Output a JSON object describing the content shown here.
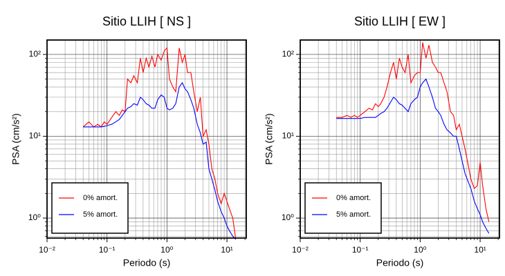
{
  "chart_data": [
    {
      "type": "line",
      "title": "Sitio LLIH [ NS ]",
      "x_label": "Periodo (s)",
      "y_label": "PSA (cm/s²)",
      "x_scale": "log",
      "y_scale": "log",
      "grid": true,
      "legend_position": "lower left",
      "xlim": [
        0.01,
        21
      ],
      "ylim": [
        0.57,
        150
      ],
      "xticks": [
        {
          "value": 0.01,
          "label": "10⁻²"
        },
        {
          "value": 0.1,
          "label": "10⁻¹"
        },
        {
          "value": 1,
          "label": "10⁰"
        },
        {
          "value": 10,
          "label": "10¹"
        }
      ],
      "yticks": [
        {
          "value": 1,
          "label": "10⁰"
        },
        {
          "value": 10,
          "label": "10¹"
        },
        {
          "value": 100,
          "label": "10²"
        }
      ],
      "xminorticks": [
        0.02,
        0.03,
        0.04,
        0.05,
        0.06,
        0.07,
        0.08,
        0.09,
        0.2,
        0.3,
        0.4,
        0.5,
        0.6,
        0.7,
        0.8,
        0.9,
        2,
        3,
        4,
        5,
        6,
        7,
        8,
        9,
        20
      ],
      "yminorticks": [
        0.6,
        0.7,
        0.8,
        0.9,
        2,
        3,
        4,
        5,
        6,
        7,
        8,
        9,
        20,
        30,
        40,
        50,
        60,
        70,
        80,
        90
      ],
      "x": [
        0.04,
        0.05,
        0.06,
        0.07,
        0.08,
        0.09,
        0.1,
        0.12,
        0.14,
        0.16,
        0.18,
        0.2,
        0.22,
        0.25,
        0.28,
        0.32,
        0.36,
        0.4,
        0.45,
        0.5,
        0.56,
        0.63,
        0.7,
        0.8,
        0.9,
        1.0,
        1.1,
        1.25,
        1.4,
        1.6,
        1.8,
        2.0,
        2.2,
        2.5,
        2.8,
        3.2,
        3.6,
        4.0,
        4.5,
        5,
        5.6,
        6.3,
        7,
        8,
        9,
        10,
        11,
        12.5,
        14
      ],
      "series": [
        {
          "name": "0% amort.",
          "color": "#ff0000",
          "values": [
            13,
            15,
            13,
            14,
            13,
            15,
            14,
            17,
            20,
            18,
            21,
            20,
            50,
            45,
            55,
            45,
            90,
            60,
            90,
            70,
            95,
            70,
            100,
            85,
            110,
            120,
            50,
            40,
            35,
            120,
            80,
            100,
            60,
            60,
            35,
            20,
            30,
            10,
            12,
            8,
            4,
            3,
            2,
            1.5,
            2,
            1.6,
            1.3,
            1.0,
            0.55
          ]
        },
        {
          "name": "5% amort.",
          "color": "#0000ff",
          "values": [
            13,
            13,
            13,
            13,
            13,
            13.2,
            13.5,
            14,
            15,
            16,
            18,
            20,
            22,
            23,
            25,
            24,
            30,
            28,
            25,
            24,
            22,
            22,
            28,
            32,
            30,
            22,
            21,
            22,
            25,
            40,
            45,
            38,
            35,
            28,
            22,
            14,
            11,
            8,
            8.5,
            4,
            3,
            2.2,
            1.6,
            1.2,
            1.0,
            0.8,
            0.7,
            0.6,
            0.55
          ]
        }
      ]
    },
    {
      "type": "line",
      "title": "Sitio LLIH [ EW ]",
      "x_label": "Periodo (s)",
      "y_label": "PSA (cm/s²)",
      "x_scale": "log",
      "y_scale": "log",
      "grid": true,
      "legend_position": "lower left",
      "xlim": [
        0.01,
        21
      ],
      "ylim": [
        0.57,
        150
      ],
      "xticks": [
        {
          "value": 0.01,
          "label": "10⁻²"
        },
        {
          "value": 0.1,
          "label": "10⁻¹"
        },
        {
          "value": 1,
          "label": "10⁰"
        },
        {
          "value": 10,
          "label": "10¹"
        }
      ],
      "yticks": [
        {
          "value": 1,
          "label": "10⁰"
        },
        {
          "value": 10,
          "label": "10¹"
        },
        {
          "value": 100,
          "label": "10²"
        }
      ],
      "xminorticks": [
        0.02,
        0.03,
        0.04,
        0.05,
        0.06,
        0.07,
        0.08,
        0.09,
        0.2,
        0.3,
        0.4,
        0.5,
        0.6,
        0.7,
        0.8,
        0.9,
        2,
        3,
        4,
        5,
        6,
        7,
        8,
        9,
        20
      ],
      "yminorticks": [
        0.6,
        0.7,
        0.8,
        0.9,
        2,
        3,
        4,
        5,
        6,
        7,
        8,
        9,
        20,
        30,
        40,
        50,
        60,
        70,
        80,
        90
      ],
      "x": [
        0.04,
        0.05,
        0.06,
        0.07,
        0.08,
        0.09,
        0.1,
        0.12,
        0.14,
        0.16,
        0.18,
        0.2,
        0.22,
        0.25,
        0.28,
        0.32,
        0.36,
        0.4,
        0.45,
        0.5,
        0.56,
        0.63,
        0.7,
        0.8,
        0.9,
        1.0,
        1.1,
        1.25,
        1.4,
        1.6,
        1.8,
        2.0,
        2.2,
        2.5,
        2.8,
        3.2,
        3.6,
        4.0,
        4.5,
        5,
        5.6,
        6.3,
        7,
        8,
        9,
        10,
        11,
        12.5,
        14
      ],
      "series": [
        {
          "name": "0% amort.",
          "color": "#ff0000",
          "values": [
            17,
            17,
            18,
            17,
            18,
            17,
            18,
            20,
            22,
            21,
            25,
            23,
            25,
            30,
            40,
            60,
            80,
            50,
            90,
            70,
            60,
            100,
            45,
            55,
            60,
            60,
            140,
            90,
            130,
            80,
            70,
            60,
            60,
            45,
            35,
            20,
            18,
            12,
            14,
            10,
            7,
            4.5,
            3,
            2.3,
            2.5,
            4.8,
            2.5,
            1.3,
            0.9
          ]
        },
        {
          "name": "5% amort.",
          "color": "#0000ff",
          "values": [
            16.5,
            16.5,
            16.5,
            16.5,
            16.5,
            16.5,
            16.5,
            17,
            17,
            17,
            17,
            18,
            19,
            20,
            22,
            26,
            30,
            28,
            25,
            24,
            22,
            20,
            25,
            28,
            30,
            40,
            45,
            50,
            40,
            30,
            22,
            20,
            18,
            14,
            12,
            11,
            10,
            10,
            7,
            5,
            3.5,
            2.8,
            2.3,
            1.6,
            1.3,
            1.1,
            0.9,
            0.75,
            0.65
          ]
        }
      ]
    }
  ]
}
